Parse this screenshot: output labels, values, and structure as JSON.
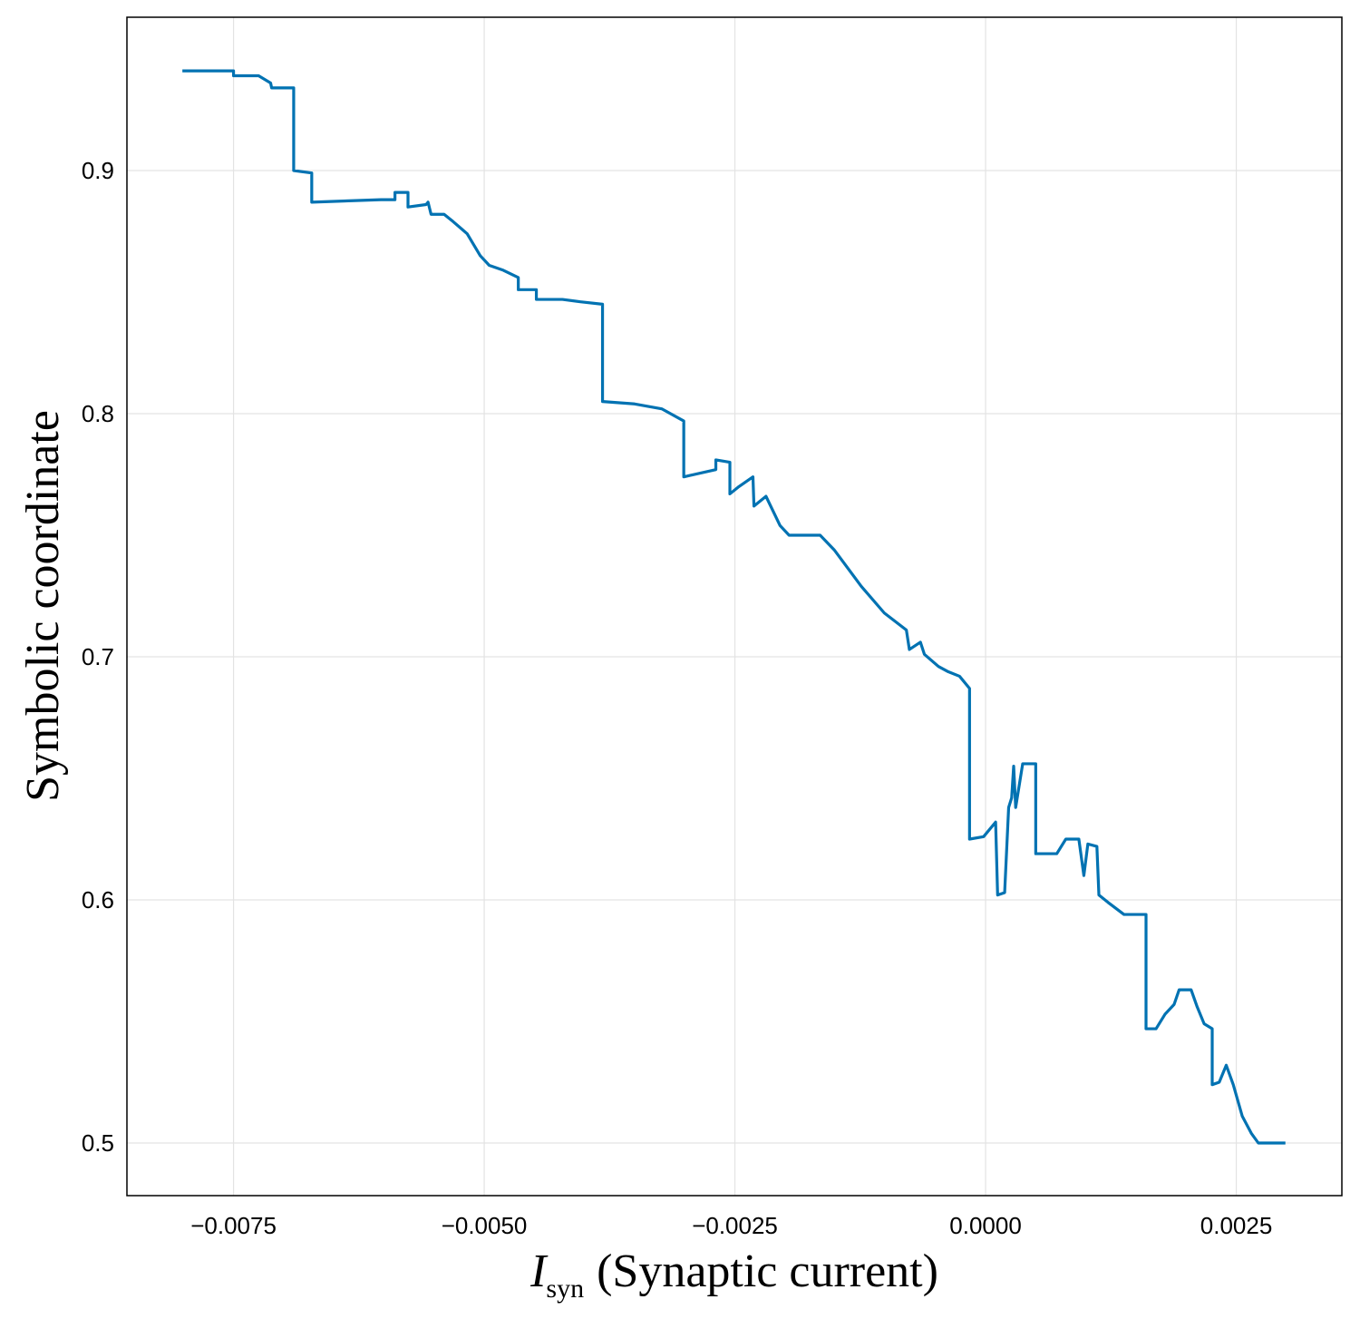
{
  "chart_data": {
    "type": "line",
    "xlabel": {
      "symbol": "I",
      "subscript": "syn",
      "text": "(Synaptic current)"
    },
    "ylabel": "Symbolic coordinate",
    "xlim": [
      -0.008563,
      0.003553
    ],
    "ylim": [
      0.47836,
      0.96306
    ],
    "xticks": [
      {
        "value": -0.0075,
        "label": "−0.0075"
      },
      {
        "value": -0.005,
        "label": "−0.0050"
      },
      {
        "value": -0.0025,
        "label": "−0.0025"
      },
      {
        "value": 0,
        "label": "0.0000"
      },
      {
        "value": 0.0025,
        "label": "0.0025"
      }
    ],
    "yticks": [
      0.5,
      0.6,
      0.7,
      0.8,
      0.9
    ],
    "grid": true,
    "series": [
      {
        "color": "#0072b2",
        "x": [
          -0.00801,
          -0.0075,
          -0.0075,
          -0.00725,
          -0.00713,
          -0.00712,
          -0.0069,
          -0.0069,
          -0.00672,
          -0.00672,
          -0.00603,
          -0.00589,
          -0.00589,
          -0.00576,
          -0.00576,
          -0.00558,
          -0.00556,
          -0.00553,
          -0.0054,
          -0.00531,
          -0.00517,
          -0.00504,
          -0.00495,
          -0.00481,
          -0.00466,
          -0.00466,
          -0.00448,
          -0.00448,
          -0.00422,
          -0.00404,
          -0.00382,
          -0.00382,
          -0.0035,
          -0.00323,
          -0.00301,
          -0.00301,
          -0.00269,
          -0.00269,
          -0.00255,
          -0.00255,
          -0.00246,
          -0.00232,
          -0.00231,
          -0.00219,
          -0.00205,
          -0.00196,
          -0.00165,
          -0.00151,
          -0.00124,
          -0.00101,
          -0.00079,
          -0.00076,
          -0.00065,
          -0.00061,
          -0.00047,
          -0.00038,
          -0.00026,
          -0.00016,
          -0.00016,
          -2e-05,
          0.0001,
          0.00012,
          0.00019,
          0.00023,
          0.00026,
          0.00028,
          0.0003,
          0.00037,
          0.0005,
          0.0005,
          0.00071,
          0.0008,
          0.00093,
          0.00098,
          0.00102,
          0.00111,
          0.00113,
          0.00122,
          0.00138,
          0.0016,
          0.0016,
          0.0017,
          0.00179,
          0.00188,
          0.00193,
          0.00205,
          0.00211,
          0.00218,
          0.00226,
          0.00226,
          0.00233,
          0.0024,
          0.00247,
          0.00256,
          0.00265,
          0.00272,
          0.00299
        ],
        "values": [
          0.941,
          0.941,
          0.939,
          0.939,
          0.936,
          0.934,
          0.934,
          0.9,
          0.899,
          0.887,
          0.888,
          0.888,
          0.891,
          0.891,
          0.885,
          0.886,
          0.887,
          0.882,
          0.882,
          0.879,
          0.874,
          0.865,
          0.861,
          0.859,
          0.856,
          0.851,
          0.851,
          0.847,
          0.847,
          0.846,
          0.845,
          0.805,
          0.804,
          0.802,
          0.797,
          0.774,
          0.777,
          0.781,
          0.78,
          0.767,
          0.77,
          0.774,
          0.762,
          0.766,
          0.754,
          0.75,
          0.75,
          0.744,
          0.729,
          0.718,
          0.711,
          0.703,
          0.706,
          0.701,
          0.696,
          0.694,
          0.692,
          0.687,
          0.625,
          0.626,
          0.632,
          0.602,
          0.603,
          0.638,
          0.642,
          0.655,
          0.638,
          0.656,
          0.656,
          0.619,
          0.619,
          0.625,
          0.625,
          0.61,
          0.623,
          0.622,
          0.602,
          0.599,
          0.594,
          0.594,
          0.547,
          0.547,
          0.553,
          0.557,
          0.563,
          0.563,
          0.556,
          0.549,
          0.547,
          0.524,
          0.525,
          0.532,
          0.524,
          0.511,
          0.504,
          0.5,
          0.5
        ]
      }
    ]
  }
}
